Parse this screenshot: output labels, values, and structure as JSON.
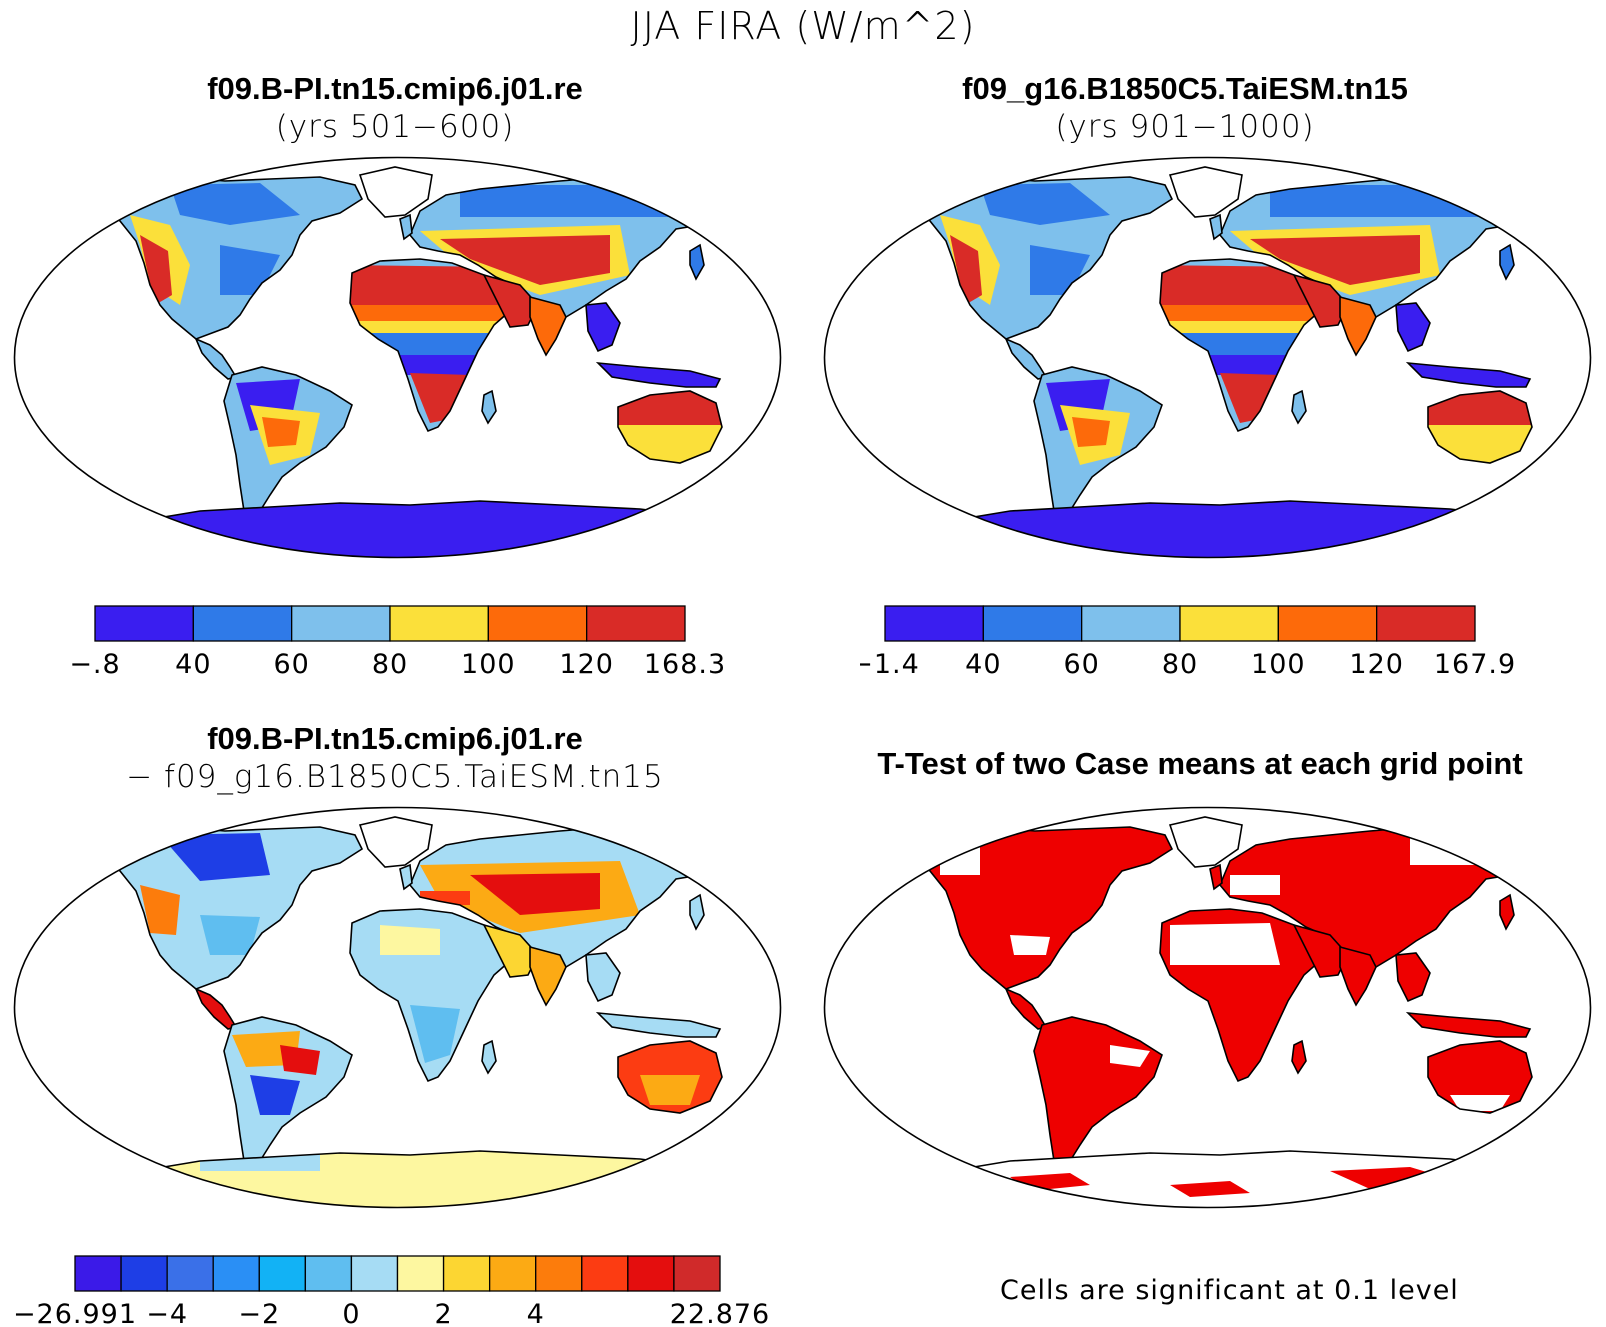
{
  "main_title": "JJA FIRA (W/m^2)",
  "colors": {
    "ocean": "#ffffff",
    "coast": "#000000",
    "sig_red": "#ee0000"
  },
  "panels": [
    {
      "title_line1": "f09.B-PI.tn15.cmip6.j01.re",
      "title_line2": "(yrs 501−600)",
      "colorbar": {
        "colors": [
          "#3a1ef0",
          "#2f7ae8",
          "#7ec0ec",
          "#fbe03a",
          "#fd6a0a",
          "#d92b27"
        ],
        "labels": [
          "−.8",
          "40",
          "60",
          "80",
          "100",
          "120",
          "168.3"
        ]
      }
    },
    {
      "title_line1": "f09_g16.B1850C5.TaiESM.tn15",
      "title_line2": "(yrs 901−1000)",
      "colorbar": {
        "colors": [
          "#3a1ef0",
          "#2f7ae8",
          "#7ec0ec",
          "#fbe03a",
          "#fd6a0a",
          "#d92b27"
        ],
        "labels": [
          "−1.4",
          "40",
          "60",
          "80",
          "100",
          "120",
          "167.9"
        ]
      }
    },
    {
      "title_line1": "f09.B-PI.tn15.cmip6.j01.re",
      "title_line2": "− f09_g16.B1850C5.TaiESM.tn15",
      "colorbar": {
        "colors": [
          "#3b1ae8",
          "#1e3ee6",
          "#3a70e8",
          "#2a8ff5",
          "#12b2f5",
          "#5fbef0",
          "#a6dcf4",
          "#fdf7a0",
          "#fcd632",
          "#fcaa14",
          "#fc7c0c",
          "#fc3c12",
          "#e40e0e",
          "#d02a2a"
        ],
        "labels": [
          "−26.991",
          "",
          "−4",
          "",
          "−2",
          "",
          "0",
          "",
          "2",
          "",
          "4",
          "",
          "",
          "",
          "22.876"
        ]
      }
    },
    {
      "title_line1": "T-Test of two Case means at each grid point",
      "note": "Cells are significant at 0.1 level"
    }
  ]
}
